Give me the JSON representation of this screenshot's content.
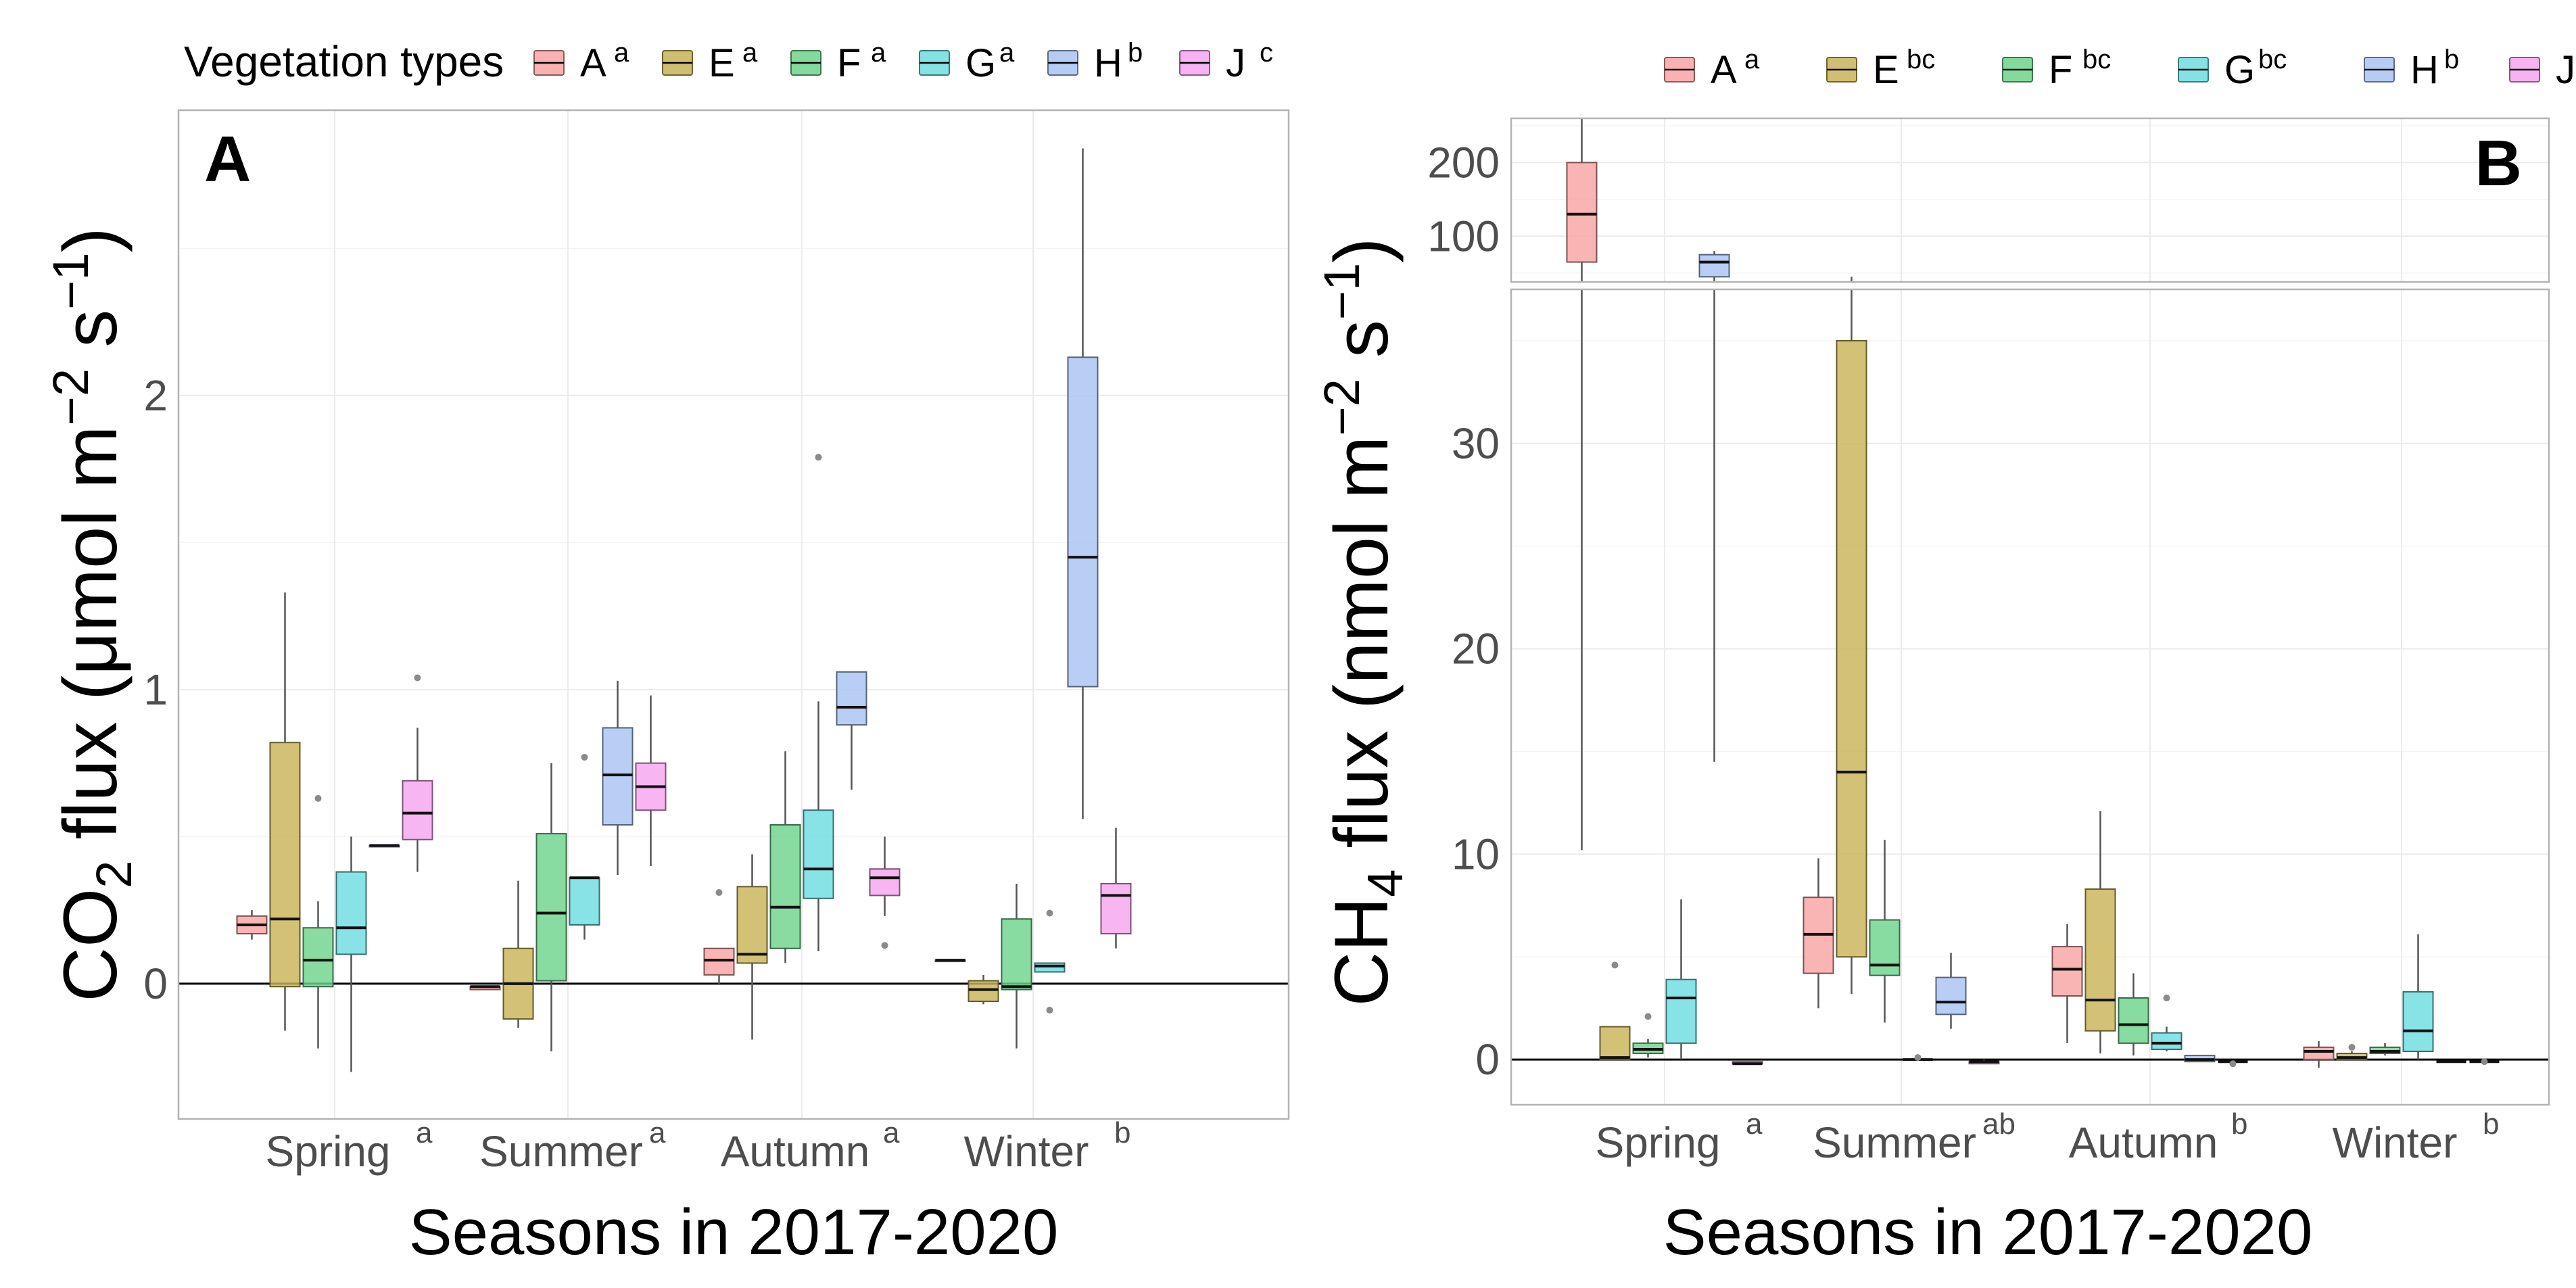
{
  "figure": {
    "x_axis_title": "Seasons in 2017-2020"
  },
  "colors": {
    "A": "#F8A3A3",
    "E": "#C9B458",
    "F": "#6FD48C",
    "G": "#6EDDE0",
    "H": "#A9C3F2",
    "J": "#F5A5EE"
  },
  "chart_data": [
    {
      "type": "box",
      "panel_label": "A",
      "legend_title": "Vegetation types",
      "legend": [
        {
          "key": "A",
          "name": "A",
          "sup": "a"
        },
        {
          "key": "E",
          "name": "E",
          "sup": "a"
        },
        {
          "key": "F",
          "name": "F",
          "sup": "a"
        },
        {
          "key": "G",
          "name": "G",
          "sup": "a"
        },
        {
          "key": "H",
          "name": "H",
          "sup": "b"
        },
        {
          "key": "J",
          "name": "J",
          "sup": "c"
        }
      ],
      "ylabel": {
        "pre": "CO",
        "sub": "2",
        "mid": " flux (μmol  m",
        "sup1": "−2",
        "mid2": " s",
        "sup2": "−1",
        "post": ")"
      },
      "xlabel": "Seasons in 2017-2020",
      "ylim": [
        -0.46,
        2.97
      ],
      "yticks": [
        0,
        1,
        2
      ],
      "hline": 0,
      "categories": [
        {
          "name": "Spring",
          "sup": "a"
        },
        {
          "name": "Summer",
          "sup": "a"
        },
        {
          "name": "Autumn",
          "sup": "a"
        },
        {
          "name": "Winter",
          "sup": "b"
        }
      ],
      "boxes": [
        {
          "season": 0,
          "veg": "A",
          "min": 0.15,
          "q1": 0.17,
          "median": 0.2,
          "q3": 0.23,
          "max": 0.25,
          "outliers": []
        },
        {
          "season": 0,
          "veg": "E",
          "min": -0.16,
          "q1": -0.01,
          "median": 0.22,
          "q3": 0.82,
          "max": 1.33,
          "outliers": []
        },
        {
          "season": 0,
          "veg": "F",
          "min": -0.22,
          "q1": -0.01,
          "median": 0.08,
          "q3": 0.19,
          "max": 0.28,
          "outliers": [
            0.63
          ]
        },
        {
          "season": 0,
          "veg": "G",
          "min": -0.3,
          "q1": 0.1,
          "median": 0.19,
          "q3": 0.38,
          "max": 0.5,
          "outliers": []
        },
        {
          "season": 0,
          "veg": "H",
          "min": 0.47,
          "q1": 0.47,
          "median": 0.47,
          "q3": 0.47,
          "max": 0.47,
          "outliers": []
        },
        {
          "season": 0,
          "veg": "J",
          "min": 0.38,
          "q1": 0.49,
          "median": 0.58,
          "q3": 0.69,
          "max": 0.87,
          "outliers": [
            1.04
          ]
        },
        {
          "season": 1,
          "veg": "A",
          "min": -0.02,
          "q1": -0.02,
          "median": -0.01,
          "q3": -0.01,
          "max": -0.01,
          "outliers": []
        },
        {
          "season": 1,
          "veg": "E",
          "min": -0.15,
          "q1": -0.12,
          "median": 0.0,
          "q3": 0.12,
          "max": 0.35,
          "outliers": []
        },
        {
          "season": 1,
          "veg": "F",
          "min": -0.23,
          "q1": 0.01,
          "median": 0.24,
          "q3": 0.51,
          "max": 0.75,
          "outliers": []
        },
        {
          "season": 1,
          "veg": "G",
          "min": 0.15,
          "q1": 0.2,
          "median": 0.36,
          "q3": 0.36,
          "max": 0.36,
          "outliers": [
            0.77
          ]
        },
        {
          "season": 1,
          "veg": "H",
          "min": 0.37,
          "q1": 0.54,
          "median": 0.71,
          "q3": 0.87,
          "max": 1.03,
          "outliers": []
        },
        {
          "season": 1,
          "veg": "J",
          "min": 0.4,
          "q1": 0.59,
          "median": 0.67,
          "q3": 0.75,
          "max": 0.98,
          "outliers": []
        },
        {
          "season": 2,
          "veg": "A",
          "min": 0.0,
          "q1": 0.03,
          "median": 0.08,
          "q3": 0.12,
          "max": 0.12,
          "outliers": [
            0.31
          ]
        },
        {
          "season": 2,
          "veg": "E",
          "min": -0.19,
          "q1": 0.07,
          "median": 0.1,
          "q3": 0.33,
          "max": 0.44,
          "outliers": []
        },
        {
          "season": 2,
          "veg": "F",
          "min": 0.07,
          "q1": 0.12,
          "median": 0.26,
          "q3": 0.54,
          "max": 0.79,
          "outliers": []
        },
        {
          "season": 2,
          "veg": "G",
          "min": 0.11,
          "q1": 0.29,
          "median": 0.39,
          "q3": 0.59,
          "max": 0.96,
          "outliers": [
            1.79
          ]
        },
        {
          "season": 2,
          "veg": "H",
          "min": 0.66,
          "q1": 0.88,
          "median": 0.94,
          "q3": 1.06,
          "max": 1.06,
          "outliers": []
        },
        {
          "season": 2,
          "veg": "J",
          "min": 0.23,
          "q1": 0.3,
          "median": 0.36,
          "q3": 0.39,
          "max": 0.5,
          "outliers": [
            0.13
          ]
        },
        {
          "season": 3,
          "veg": "A",
          "min": 0.08,
          "q1": 0.08,
          "median": 0.08,
          "q3": 0.08,
          "max": 0.08,
          "outliers": []
        },
        {
          "season": 3,
          "veg": "E",
          "min": -0.07,
          "q1": -0.06,
          "median": -0.02,
          "q3": 0.01,
          "max": 0.03,
          "outliers": []
        },
        {
          "season": 3,
          "veg": "F",
          "min": -0.22,
          "q1": -0.02,
          "median": -0.01,
          "q3": 0.22,
          "max": 0.34,
          "outliers": []
        },
        {
          "season": 3,
          "veg": "G",
          "min": 0.04,
          "q1": 0.04,
          "median": 0.06,
          "q3": 0.07,
          "max": 0.07,
          "outliers": [
            -0.09,
            0.24
          ]
        },
        {
          "season": 3,
          "veg": "H",
          "min": 0.56,
          "q1": 1.01,
          "median": 1.45,
          "q3": 2.13,
          "max": 2.84,
          "outliers": []
        },
        {
          "season": 3,
          "veg": "J",
          "min": 0.12,
          "q1": 0.17,
          "median": 0.3,
          "q3": 0.34,
          "max": 0.53,
          "outliers": []
        }
      ]
    },
    {
      "type": "box",
      "panel_label": "B",
      "legend": [
        {
          "key": "A",
          "name": "A",
          "sup": "a"
        },
        {
          "key": "E",
          "name": "E",
          "sup": "bc"
        },
        {
          "key": "F",
          "name": "F",
          "sup": "bc"
        },
        {
          "key": "G",
          "name": "G",
          "sup": "bc"
        },
        {
          "key": "H",
          "name": "H",
          "sup": "b"
        },
        {
          "key": "J",
          "name": "J",
          "sup": "c"
        }
      ],
      "ylabel": {
        "pre": "CH",
        "sub": "4",
        "mid": " flux (nmol  m",
        "sup1": "−2",
        "mid2": " s",
        "sup2": "−1",
        "post": ")"
      },
      "xlabel": "Seasons in 2017-2020",
      "axis_break": true,
      "ylim_lower": [
        -2.2,
        37.5
      ],
      "ylim_upper": [
        38,
        260
      ],
      "yticks_lower": [
        0,
        10,
        20,
        30
      ],
      "yticks_upper": [
        100,
        200
      ],
      "hline": 0,
      "categories": [
        {
          "name": "Spring",
          "sup": "a"
        },
        {
          "name": "Summer",
          "sup": "ab"
        },
        {
          "name": "Autumn",
          "sup": "b"
        },
        {
          "name": "Winter",
          "sup": "b"
        }
      ],
      "boxes": [
        {
          "season": 0,
          "veg": "A",
          "min": 10.2,
          "q1": 65,
          "median": 130,
          "q3": 200,
          "max": 260,
          "outliers": []
        },
        {
          "season": 0,
          "veg": "E",
          "min": 0.0,
          "q1": 0.0,
          "median": 0.1,
          "q3": 1.6,
          "max": 1.6,
          "outliers": [
            4.6
          ]
        },
        {
          "season": 0,
          "veg": "F",
          "min": 0.1,
          "q1": 0.3,
          "median": 0.5,
          "q3": 0.8,
          "max": 1.0,
          "outliers": [
            2.1
          ]
        },
        {
          "season": 0,
          "veg": "G",
          "min": 0.0,
          "q1": 0.8,
          "median": 3.0,
          "q3": 3.9,
          "max": 7.8,
          "outliers": []
        },
        {
          "season": 0,
          "veg": "H",
          "min": 14.5,
          "q1": 45,
          "median": 65,
          "q3": 75,
          "max": 80,
          "outliers": []
        },
        {
          "season": 0,
          "veg": "J",
          "min": -0.2,
          "q1": -0.2,
          "median": -0.2,
          "q3": -0.1,
          "max": -0.1,
          "outliers": []
        },
        {
          "season": 1,
          "veg": "A",
          "min": 2.5,
          "q1": 4.2,
          "median": 6.1,
          "q3": 7.9,
          "max": 9.8,
          "outliers": []
        },
        {
          "season": 1,
          "veg": "E",
          "min": 3.2,
          "q1": 5.0,
          "median": 14.0,
          "q3": 35.0,
          "max": 45.0,
          "outliers": []
        },
        {
          "season": 1,
          "veg": "F",
          "min": 1.8,
          "q1": 4.1,
          "median": 4.6,
          "q3": 6.8,
          "max": 10.7,
          "outliers": []
        },
        {
          "season": 1,
          "veg": "G",
          "min": 0.0,
          "q1": 0.0,
          "median": 0.0,
          "q3": 0.0,
          "max": 0.0,
          "outliers": [
            0.1
          ]
        },
        {
          "season": 1,
          "veg": "H",
          "min": 1.5,
          "q1": 2.2,
          "median": 2.8,
          "q3": 4.0,
          "max": 5.2,
          "outliers": []
        },
        {
          "season": 1,
          "veg": "J",
          "min": -0.2,
          "q1": -0.2,
          "median": -0.1,
          "q3": -0.1,
          "max": 0.0,
          "outliers": []
        },
        {
          "season": 2,
          "veg": "A",
          "min": 0.8,
          "q1": 3.1,
          "median": 4.4,
          "q3": 5.5,
          "max": 6.6,
          "outliers": []
        },
        {
          "season": 2,
          "veg": "E",
          "min": 0.3,
          "q1": 1.4,
          "median": 2.9,
          "q3": 8.3,
          "max": 12.1,
          "outliers": []
        },
        {
          "season": 2,
          "veg": "F",
          "min": 0.2,
          "q1": 0.8,
          "median": 1.7,
          "q3": 3.0,
          "max": 4.2,
          "outliers": []
        },
        {
          "season": 2,
          "veg": "G",
          "min": 0.4,
          "q1": 0.5,
          "median": 0.8,
          "q3": 1.3,
          "max": 1.6,
          "outliers": [
            3.0
          ]
        },
        {
          "season": 2,
          "veg": "H",
          "min": -0.1,
          "q1": -0.1,
          "median": 0.0,
          "q3": 0.2,
          "max": 0.2,
          "outliers": []
        },
        {
          "season": 2,
          "veg": "J",
          "min": -0.1,
          "q1": -0.1,
          "median": -0.1,
          "q3": -0.1,
          "max": -0.1,
          "outliers": [
            -0.2
          ]
        },
        {
          "season": 3,
          "veg": "A",
          "min": -0.4,
          "q1": 0.0,
          "median": 0.4,
          "q3": 0.6,
          "max": 0.9,
          "outliers": []
        },
        {
          "season": 3,
          "veg": "E",
          "min": 0.0,
          "q1": 0.0,
          "median": 0.1,
          "q3": 0.3,
          "max": 0.4,
          "outliers": [
            0.6
          ]
        },
        {
          "season": 3,
          "veg": "F",
          "min": 0.2,
          "q1": 0.3,
          "median": 0.4,
          "q3": 0.6,
          "max": 0.8,
          "outliers": []
        },
        {
          "season": 3,
          "veg": "G",
          "min": 0.0,
          "q1": 0.4,
          "median": 1.4,
          "q3": 3.3,
          "max": 6.1,
          "outliers": []
        },
        {
          "season": 3,
          "veg": "H",
          "min": -0.1,
          "q1": -0.1,
          "median": -0.1,
          "q3": -0.1,
          "max": -0.1,
          "outliers": []
        },
        {
          "season": 3,
          "veg": "J",
          "min": -0.1,
          "q1": -0.1,
          "median": -0.1,
          "q3": -0.1,
          "max": -0.1,
          "outliers": [
            -0.1
          ]
        }
      ]
    }
  ]
}
